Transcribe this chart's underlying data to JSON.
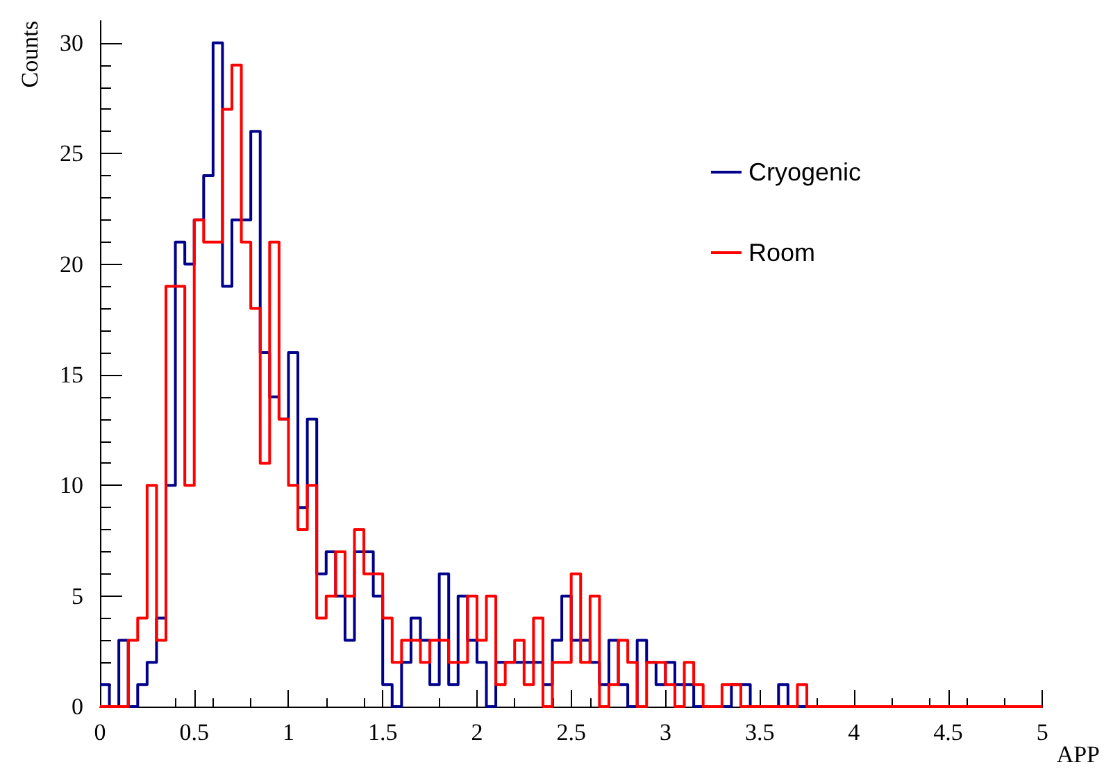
{
  "chart_data": {
    "type": "histogram",
    "xlabel": "APP",
    "ylabel": "Counts",
    "bins": [
      0,
      0.05,
      0.1,
      0.15,
      0.2,
      0.25,
      0.3,
      0.35,
      0.4,
      0.45,
      0.5,
      0.55,
      0.6,
      0.65,
      0.7,
      0.75,
      0.8,
      0.85,
      0.9,
      0.95,
      1,
      1.05,
      1.1,
      1.15,
      1.2,
      1.25,
      1.3,
      1.35,
      1.4,
      1.45,
      1.5,
      1.55,
      1.6,
      1.65,
      1.7,
      1.75,
      1.8,
      1.85,
      1.9,
      1.95,
      2,
      2.05,
      2.1,
      2.15,
      2.2,
      2.25,
      2.3,
      2.35,
      2.4,
      2.45,
      2.5,
      2.55,
      2.6,
      2.65,
      2.7,
      2.75,
      2.8,
      2.85,
      2.9,
      2.95,
      3,
      3.05,
      3.1,
      3.15,
      3.2,
      3.25,
      3.3,
      3.35,
      3.4,
      3.45,
      3.5,
      3.55,
      3.6,
      3.65,
      3.7,
      3.75,
      3.8,
      3.85,
      3.9,
      3.95,
      4,
      4.05,
      4.1,
      4.15,
      4.2,
      4.25,
      4.3,
      4.35,
      4.4,
      4.45,
      4.5,
      4.55,
      4.6,
      4.65,
      4.7,
      4.75,
      4.8,
      4.85,
      4.9,
      4.95,
      5
    ],
    "series": [
      {
        "name": "Cryogenic",
        "color": "#00008b",
        "values": [
          1,
          0,
          3,
          0,
          1,
          2,
          4,
          10,
          21,
          20,
          22,
          24,
          30,
          19,
          22,
          22,
          26,
          16,
          14,
          13,
          16,
          9,
          13,
          6,
          7,
          5,
          3,
          7,
          7,
          5,
          1,
          0,
          2,
          4,
          3,
          1,
          6,
          1,
          5,
          3,
          2,
          0,
          2,
          2,
          2,
          2,
          2,
          1,
          3,
          5,
          3,
          3,
          2,
          1,
          3,
          1,
          0,
          3,
          2,
          1,
          2,
          1,
          1,
          0,
          0,
          0,
          0,
          1,
          1,
          0,
          0,
          0,
          1,
          0,
          0,
          0,
          0,
          0,
          0,
          0,
          0,
          0,
          0,
          0,
          0,
          0,
          0,
          0,
          0,
          0,
          0,
          0,
          0,
          0,
          0,
          0,
          0,
          0,
          0,
          0
        ]
      },
      {
        "name": "Room",
        "color": "#ff0000",
        "values": [
          0,
          0,
          0,
          3,
          4,
          10,
          3,
          19,
          19,
          10,
          22,
          21,
          21,
          27,
          29,
          21,
          18,
          11,
          21,
          13,
          10,
          8,
          10,
          4,
          5,
          7,
          5,
          8,
          6,
          6,
          4,
          2,
          3,
          3,
          2,
          3,
          3,
          2,
          2,
          5,
          3,
          5,
          1,
          2,
          3,
          1,
          4,
          0,
          2,
          2,
          6,
          2,
          5,
          0,
          1,
          3,
          2,
          0,
          2,
          2,
          1,
          0,
          2,
          1,
          0,
          0,
          1,
          1,
          0,
          0,
          0,
          0,
          0,
          0,
          1,
          0,
          0,
          0,
          0,
          0,
          0,
          0,
          0,
          0,
          0,
          0,
          0,
          0,
          0,
          0,
          0,
          0,
          0,
          0,
          0,
          0,
          0,
          0,
          0,
          0
        ]
      }
    ],
    "xlim": [
      0,
      5
    ],
    "xticks": [
      0,
      0.5,
      1,
      1.5,
      2,
      2.5,
      3,
      3.5,
      4,
      4.5,
      5
    ],
    "ylim": [
      0,
      31
    ],
    "yticks": [
      0,
      5,
      10,
      15,
      20,
      25,
      30
    ],
    "legend": "top right",
    "grid": false
  }
}
